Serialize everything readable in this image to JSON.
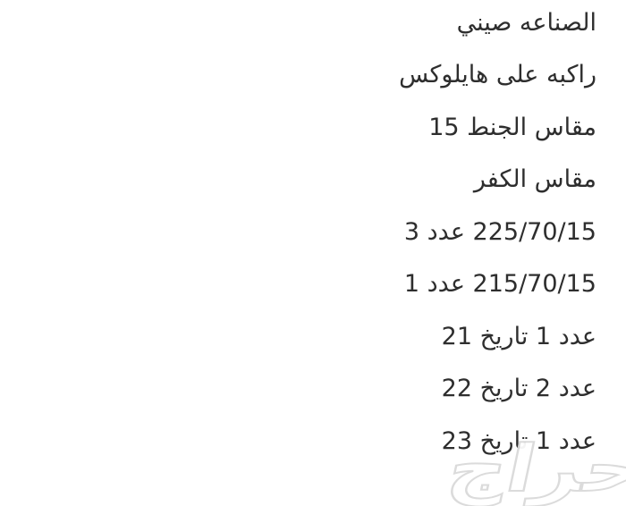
{
  "page": {
    "background_color": "#ffffff",
    "text_color": "#2e2e2e",
    "direction": "rtl"
  },
  "lines": [
    "الصناعه صيني",
    "راكبه على هايلوكس",
    "مقاس الجنط 15",
    "مقاس الكفر",
    "225/70/15 عدد 3",
    "215/70/15 عدد 1",
    "عدد 1 تاريخ 21",
    "عدد 2 تاريخ 22",
    "عدد 1 تاريخ 23"
  ],
  "watermark": {
    "label": "حراج",
    "stroke_color": "#dadada",
    "fill_color": "#ffffff"
  }
}
